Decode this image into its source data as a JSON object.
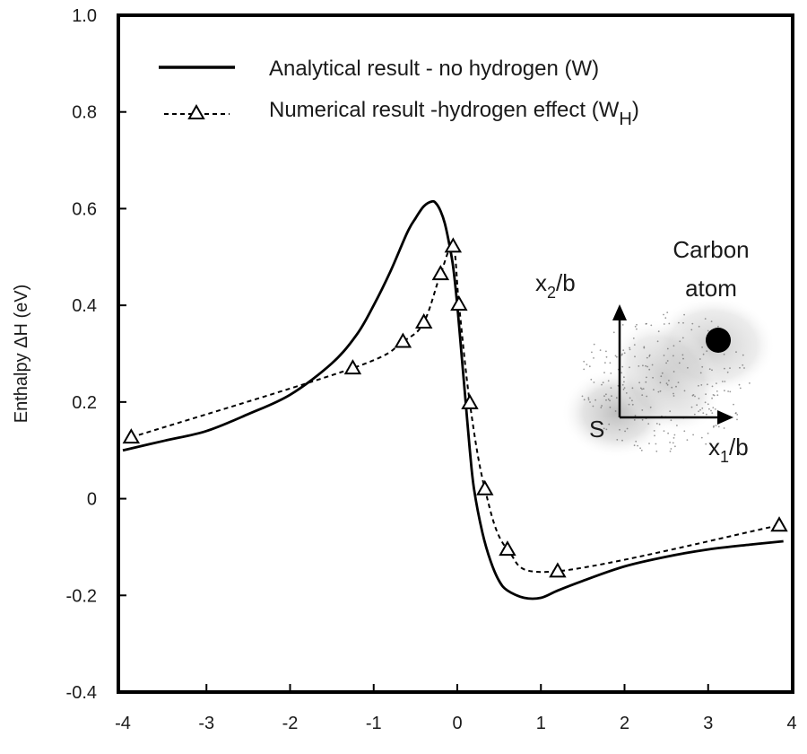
{
  "chart_data": {
    "type": "line",
    "title": "",
    "xlabel": "",
    "ylabel": "Enthalpy   ΔH  (eV)",
    "xlim": [
      -4,
      4
    ],
    "ylim": [
      -0.4,
      1.0
    ],
    "xticks": [
      "-4",
      "-3",
      "-2",
      "-1",
      "0",
      "1",
      "2",
      "3",
      "4"
    ],
    "yticks": [
      "-0.4",
      "-0.2",
      "0",
      "0.2",
      "0.4",
      "0.6",
      "0.8",
      "1.0"
    ],
    "grid": false,
    "legend_position": "top-left",
    "series": [
      {
        "name": "Analytical result - no hydrogen (W)",
        "style": "solid",
        "color": "#000000",
        "x": [
          -4.0,
          -3.5,
          -3.0,
          -2.5,
          -2.0,
          -1.5,
          -1.2,
          -1.0,
          -0.8,
          -0.6,
          -0.5,
          -0.4,
          -0.3,
          -0.25,
          -0.2,
          -0.15,
          -0.1,
          -0.05,
          0.0,
          0.05,
          0.1,
          0.15,
          0.2,
          0.3,
          0.4,
          0.5,
          0.6,
          0.8,
          1.0,
          1.2,
          1.5,
          2.0,
          2.5,
          3.0,
          3.5,
          3.9
        ],
        "y": [
          0.1,
          0.12,
          0.14,
          0.175,
          0.215,
          0.28,
          0.34,
          0.4,
          0.47,
          0.55,
          0.58,
          0.605,
          0.615,
          0.61,
          0.595,
          0.57,
          0.53,
          0.48,
          0.4,
          0.3,
          0.2,
          0.1,
          0.02,
          -0.07,
          -0.13,
          -0.17,
          -0.19,
          -0.205,
          -0.205,
          -0.19,
          -0.17,
          -0.14,
          -0.12,
          -0.105,
          -0.095,
          -0.088
        ]
      },
      {
        "name": "Numerical result -hydrogen effect (W",
        "name_subscript": "H",
        "name_suffix": ")",
        "style": "dashed",
        "marker": "triangle",
        "color": "#000000",
        "x": [
          -3.9,
          -1.25,
          -0.65,
          -0.4,
          -0.2,
          -0.05,
          0.02,
          0.15,
          0.33,
          0.6,
          1.2,
          3.85
        ],
        "y": [
          0.127,
          0.27,
          0.325,
          0.365,
          0.465,
          0.522,
          0.402,
          0.198,
          0.02,
          -0.105,
          -0.15,
          -0.055
        ]
      }
    ],
    "inset": {
      "x_axis_label": "x",
      "x_axis_subscript": "1",
      "x_axis_suffix": "/b",
      "y_axis_label": "x",
      "y_axis_subscript": "2",
      "y_axis_suffix": "/b",
      "origin_label": "S",
      "atom_label_line1": "Carbon",
      "atom_label_line2": "atom"
    }
  }
}
